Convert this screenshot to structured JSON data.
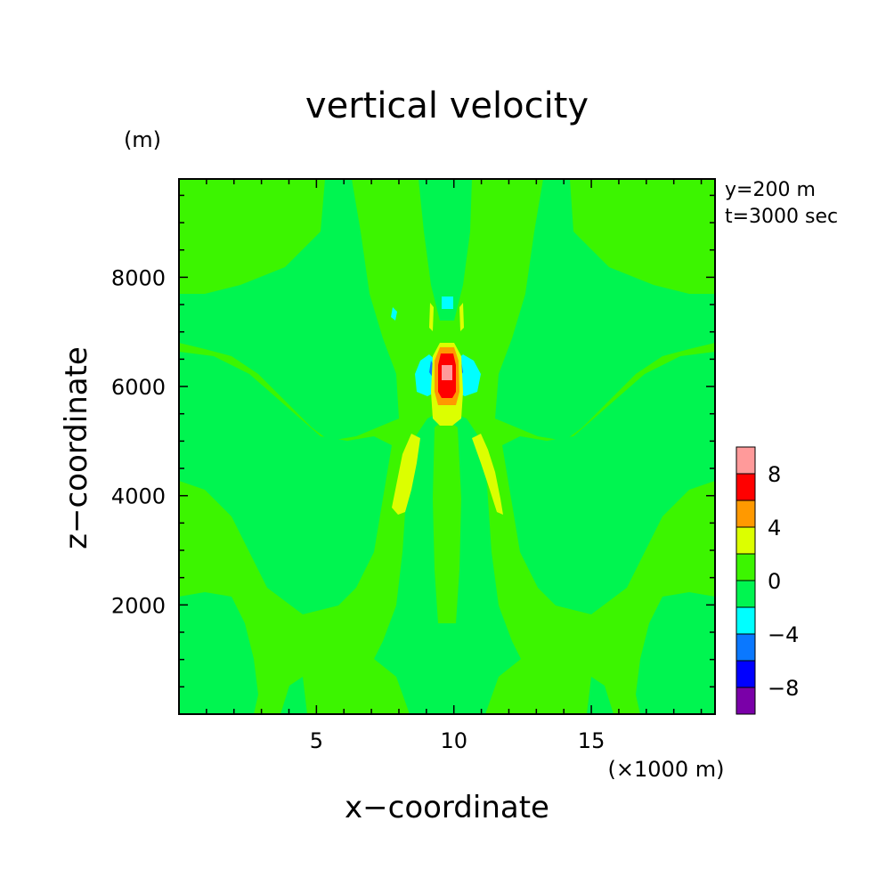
{
  "chart_data": {
    "type": "heatmap",
    "title": "vertical velocity",
    "xlabel": "x−coordinate",
    "ylabel": "z−coordinate",
    "x_unit": "(×1000 m)",
    "y_unit": "(m)",
    "annotations": [
      "y=200 m",
      "t=3000 sec"
    ],
    "xlim": [
      0,
      19.5
    ],
    "ylim": [
      0,
      9800
    ],
    "x_ticks": [
      5,
      10,
      15
    ],
    "y_ticks": [
      2000,
      4000,
      6000,
      8000
    ],
    "x_tick_labels": [
      "5",
      "10",
      "15"
    ],
    "y_tick_labels": [
      "2000",
      "4000",
      "6000",
      "8000"
    ],
    "colorbar": {
      "levels": [
        -10,
        -8,
        -6,
        -4,
        -2,
        0,
        2,
        4,
        6,
        8,
        10
      ],
      "colors": [
        "#7a00a8",
        "#0000ff",
        "#0a78ff",
        "#00ffff",
        "#00f550",
        "#3cf500",
        "#dcff00",
        "#ff9900",
        "#ff0000",
        "#ff9a9a"
      ],
      "tick_values": [
        -8,
        -4,
        0,
        4,
        8
      ],
      "tick_labels": [
        "−8",
        "−4",
        "0",
        "4",
        "8"
      ]
    },
    "background_level": "0 to 2",
    "features": [
      {
        "label": "updraft core",
        "x": 10.0,
        "z": 6300,
        "max_level": "8 to 10"
      },
      {
        "label": "left flank updraft",
        "x": 8.5,
        "z": 4400,
        "level": "2 to 4"
      },
      {
        "label": "right flank updraft",
        "x": 11.5,
        "z": 4400,
        "level": "2 to 4"
      },
      {
        "label": "downdraft pair",
        "x": [
          9.2,
          10.8
        ],
        "z": 6300,
        "min_level": "-4 to -2"
      },
      {
        "label": "upper downdraft",
        "x": 9.9,
        "z": 7600,
        "level": "-4 to -2"
      }
    ]
  }
}
